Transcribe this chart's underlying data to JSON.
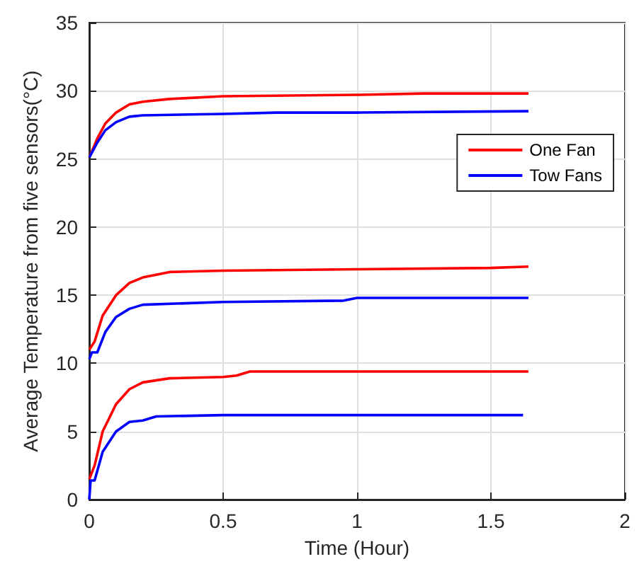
{
  "chart_data": {
    "type": "line",
    "xlabel": "Time (Hour)",
    "ylabel": "Average Temperature from five sensors(°C)",
    "xlim": [
      0,
      2
    ],
    "xticks": [
      0,
      0.5,
      1,
      1.5,
      2
    ],
    "ylim": [
      0,
      35
    ],
    "yticks": [
      0,
      5,
      10,
      15,
      20,
      25,
      30,
      35
    ],
    "grid": true,
    "legend": "right",
    "marker": "none",
    "line_style": "solid",
    "series": [
      {
        "name": "One Fan",
        "color": "#ff0000",
        "x": [
          0,
          0.03,
          0.06,
          0.1,
          0.15,
          0.2,
          0.3,
          0.5,
          1,
          1.25,
          1.64
        ],
        "values": [
          25.1,
          26.5,
          27.6,
          28.4,
          29,
          29.2,
          29.4,
          29.6,
          29.7,
          29.8,
          29.8
        ]
      },
      {
        "name": "Tow Fans",
        "color": "#0000ff",
        "x": [
          0,
          0.03,
          0.06,
          0.1,
          0.15,
          0.2,
          0.5,
          0.7,
          1,
          1.64
        ],
        "values": [
          25.1,
          26.2,
          27.1,
          27.7,
          28.1,
          28.2,
          28.3,
          28.4,
          28.4,
          28.5
        ]
      },
      {
        "color": "#ff0000",
        "x": [
          0,
          0.02,
          0.05,
          0.1,
          0.15,
          0.2,
          0.3,
          0.5,
          1,
          1.5,
          1.64
        ],
        "values": [
          11,
          11.6,
          13.5,
          15,
          15.9,
          16.3,
          16.7,
          16.8,
          16.9,
          17,
          17.1
        ]
      },
      {
        "color": "#0000ff",
        "x": [
          0,
          0.01,
          0.03,
          0.06,
          0.1,
          0.15,
          0.2,
          0.5,
          0.95,
          1,
          1.64
        ],
        "values": [
          10.3,
          10.8,
          10.8,
          12.3,
          13.4,
          14,
          14.3,
          14.5,
          14.6,
          14.8,
          14.8
        ]
      },
      {
        "color": "#ff0000",
        "x": [
          0,
          0.02,
          0.05,
          0.1,
          0.15,
          0.2,
          0.3,
          0.5,
          0.55,
          0.6,
          1.64
        ],
        "values": [
          1.5,
          2.5,
          5,
          7,
          8.1,
          8.6,
          8.9,
          9,
          9.1,
          9.4,
          9.4
        ]
      },
      {
        "color": "#0000ff",
        "x": [
          0,
          0.005,
          0.02,
          0.05,
          0.1,
          0.15,
          0.2,
          0.25,
          0.5,
          1.62
        ],
        "values": [
          0,
          1.4,
          1.4,
          3.5,
          5,
          5.7,
          5.8,
          6.1,
          6.2,
          6.2
        ]
      }
    ]
  }
}
